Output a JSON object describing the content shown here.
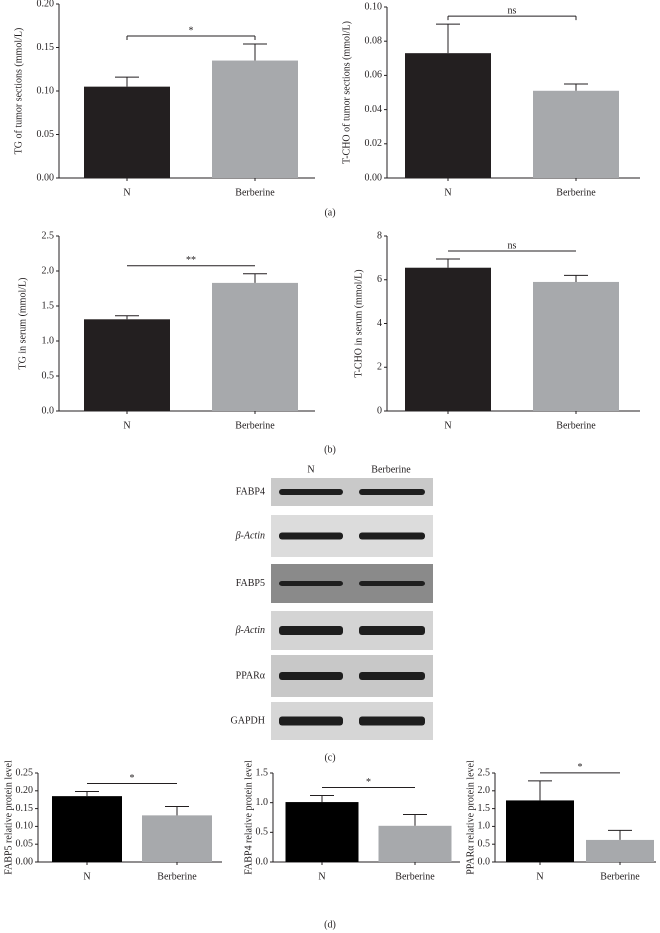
{
  "chart_data": [
    {
      "type": "bar",
      "y_label": "TG of tumor sections (mmol/L)",
      "categories": [
        "N",
        "Berberine"
      ],
      "values": [
        0.105,
        0.135
      ],
      "errors": [
        0.011,
        0.019
      ],
      "colors": [
        "#231f20",
        "#a7a9ac"
      ],
      "ylim": [
        0,
        0.2
      ],
      "yticks": [
        {
          "value": 0,
          "label": "0.00"
        },
        0.05,
        {
          "value": 0.1,
          "label": "0.10"
        },
        0.15,
        {
          "value": 0.2,
          "label": "0.20"
        }
      ],
      "annotation": "*"
    },
    {
      "type": "bar",
      "y_label": "T-CHO of tumor sections (mmol/L)",
      "categories": [
        "N",
        "Berberine"
      ],
      "values": [
        0.073,
        0.051
      ],
      "errors": [
        0.017,
        0.004
      ],
      "colors": [
        "#231f20",
        "#a7a9ac"
      ],
      "ylim": [
        0,
        0.1
      ],
      "yticks": [
        {
          "value": 0,
          "label": "0.00"
        },
        0.02,
        0.04,
        0.06,
        0.08,
        {
          "value": 0.1,
          "label": "0.10"
        }
      ],
      "annotation": "ns"
    },
    {
      "type": "bar",
      "y_label": "TG in serum (mmol/L)",
      "categories": [
        "N",
        "Berberine"
      ],
      "values": [
        1.31,
        1.83
      ],
      "errors": [
        0.05,
        0.13
      ],
      "colors": [
        "#231f20",
        "#a7a9ac"
      ],
      "ylim": [
        0,
        2.5
      ],
      "yticks": [
        {
          "value": 0,
          "label": "0.0"
        },
        0.5,
        {
          "value": 1,
          "label": "1.0"
        },
        1.5,
        {
          "value": 2,
          "label": "2.0"
        },
        2.5
      ],
      "annotation": "**"
    },
    {
      "type": "bar",
      "y_label": "T-CHO in serum (mmol/L)",
      "categories": [
        "N",
        "Berberine"
      ],
      "values": [
        6.55,
        5.9
      ],
      "errors": [
        0.4,
        0.3
      ],
      "colors": [
        "#231f20",
        "#a7a9ac"
      ],
      "ylim": [
        0,
        8
      ],
      "yticks": [
        0,
        2,
        4,
        6,
        8
      ],
      "annotation": "ns"
    },
    {
      "type": "bar",
      "y_label": "FABP5 relative protein level",
      "categories": [
        "N",
        "Berberine"
      ],
      "values": [
        0.185,
        0.131
      ],
      "errors": [
        0.013,
        0.025
      ],
      "colors": [
        "#000000",
        "#a7a9ac"
      ],
      "ylim": [
        0,
        0.25
      ],
      "yticks": [
        {
          "value": 0,
          "label": "0.00"
        },
        0.05,
        {
          "value": 0.1,
          "label": "0.10"
        },
        0.15,
        {
          "value": 0.2,
          "label": "0.20"
        },
        0.25
      ],
      "annotation": "*"
    },
    {
      "type": "bar",
      "y_label": "FABP4 relative protein level",
      "categories": [
        "N",
        "Berberine"
      ],
      "values": [
        1.01,
        0.61
      ],
      "errors": [
        0.11,
        0.19
      ],
      "colors": [
        "#000000",
        "#a7a9ac"
      ],
      "ylim": [
        0,
        1.5
      ],
      "yticks": [
        {
          "value": 0,
          "label": "0.0"
        },
        0.5,
        {
          "value": 1,
          "label": "1.0"
        },
        1.5
      ],
      "annotation": "*"
    },
    {
      "type": "bar",
      "y_label": "PPARα relative protein level",
      "categories": [
        "N",
        "Berberine"
      ],
      "values": [
        1.73,
        0.62
      ],
      "errors": [
        0.55,
        0.27
      ],
      "colors": [
        "#000000",
        "#a7a9ac"
      ],
      "ylim": [
        0,
        2.5
      ],
      "yticks": [
        {
          "value": 0,
          "label": "0.0"
        },
        0.5,
        {
          "value": 1,
          "label": "1.0"
        },
        1.5,
        {
          "value": 2,
          "label": "2.0"
        },
        2.5
      ],
      "annotation": "*"
    }
  ],
  "panel_labels": [
    "(a)",
    "(b)",
    "(c)",
    "(d)"
  ],
  "blot": {
    "columns": [
      "N",
      "Berberine"
    ],
    "rows": [
      "FABP4",
      "β-Actin",
      "FABP5",
      "β-Actin",
      "PPARα",
      "GAPDH"
    ]
  }
}
